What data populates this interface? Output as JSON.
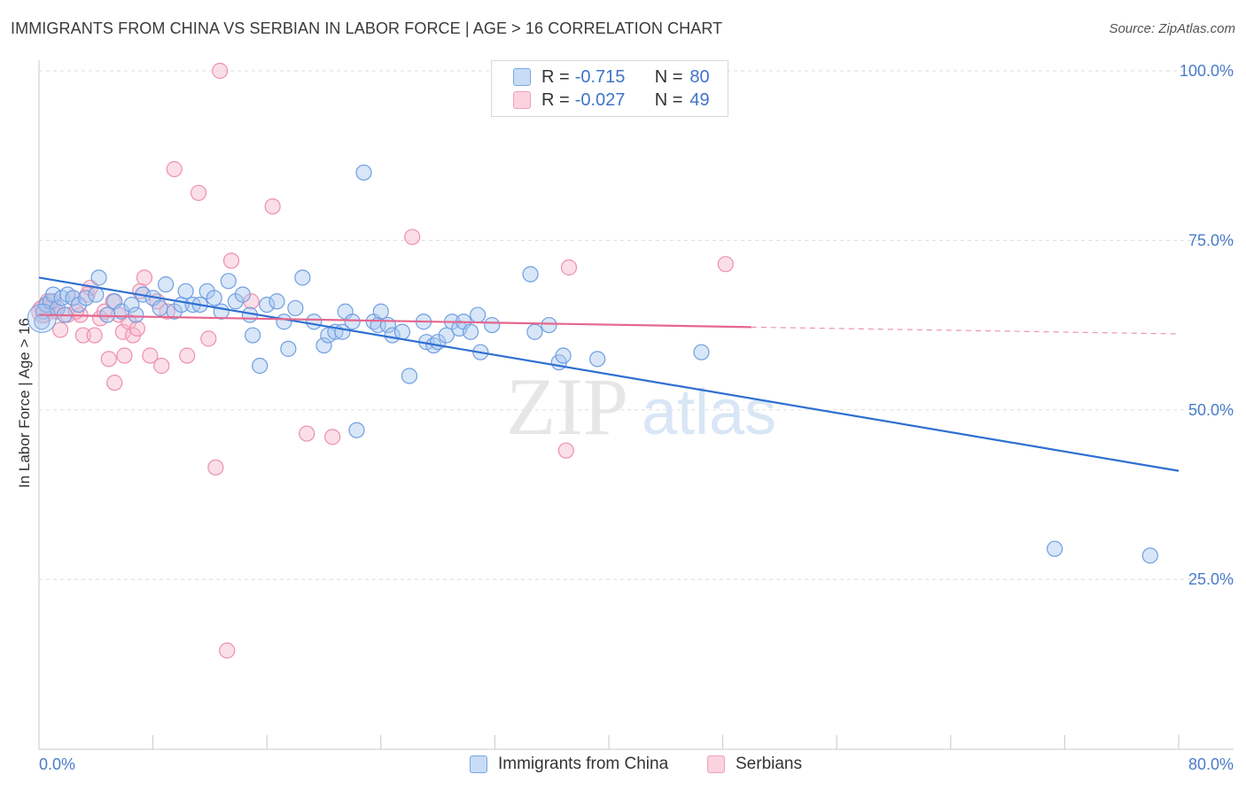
{
  "title": "IMMIGRANTS FROM CHINA VS SERBIAN IN LABOR FORCE | AGE > 16 CORRELATION CHART",
  "source": "Source: ZipAtlas.com",
  "watermark": {
    "zip": "ZIP",
    "atlas": "atlas"
  },
  "legend": {
    "china": {
      "r_label": "R =",
      "r_value": "-0.715",
      "n_label": "N =",
      "n_value": "80"
    },
    "serbian": {
      "r_label": "R =",
      "r_value": "-0.027",
      "n_label": "N =",
      "n_value": "49"
    }
  },
  "bottom_legend": {
    "china": "Immigrants from China",
    "serbian": "Serbians"
  },
  "colors": {
    "china_fill": "#a8c8f0",
    "china_stroke": "#6f9fe0",
    "china_line": "#2e6fd1",
    "serbian_fill": "#f7b8cc",
    "serbian_stroke": "#ee8fae",
    "serbian_line": "#e4678f",
    "tick": "#4a7cc9",
    "grid": "#dddddd"
  },
  "chart_data": {
    "type": "scatter",
    "title": "IMMIGRANTS FROM CHINA VS SERBIAN IN LABOR FORCE | AGE > 16 CORRELATION CHART",
    "xlabel": "",
    "ylabel": "In Labor Force | Age > 16",
    "xlim": [
      0,
      80
    ],
    "ylim": [
      0,
      103
    ],
    "x_tick_labels": [
      "0.0%",
      "80.0%"
    ],
    "y_ticks": [
      25,
      50,
      75,
      100
    ],
    "y_tick_labels": [
      "25.0%",
      "50.0%",
      "75.0%",
      "100.0%"
    ],
    "grid": true,
    "series": [
      {
        "name": "Immigrants from China",
        "trend": {
          "x0": 0,
          "y0": 69.5,
          "x1": 80,
          "y1": 41.0,
          "dashed_to": null
        },
        "points": [
          [
            0.3,
            64.5
          ],
          [
            0.5,
            65.5
          ],
          [
            0.8,
            66.0
          ],
          [
            1.0,
            67.0
          ],
          [
            1.3,
            65.0
          ],
          [
            1.6,
            66.5
          ],
          [
            2.0,
            67.0
          ],
          [
            2.4,
            66.5
          ],
          [
            2.8,
            65.5
          ],
          [
            3.3,
            66.5
          ],
          [
            4.0,
            67.0
          ],
          [
            4.2,
            69.5
          ],
          [
            4.8,
            64.0
          ],
          [
            5.3,
            66.0
          ],
          [
            5.8,
            64.5
          ],
          [
            6.5,
            65.5
          ],
          [
            6.8,
            64.0
          ],
          [
            7.3,
            67.0
          ],
          [
            8.0,
            66.5
          ],
          [
            8.5,
            65.0
          ],
          [
            8.9,
            68.5
          ],
          [
            9.5,
            64.5
          ],
          [
            10.0,
            65.5
          ],
          [
            10.3,
            67.5
          ],
          [
            10.8,
            65.5
          ],
          [
            11.3,
            65.5
          ],
          [
            11.8,
            67.5
          ],
          [
            12.3,
            66.5
          ],
          [
            12.8,
            64.5
          ],
          [
            13.3,
            69.0
          ],
          [
            13.8,
            66.0
          ],
          [
            14.3,
            67.0
          ],
          [
            14.8,
            64.0
          ],
          [
            15.0,
            61.0
          ],
          [
            15.5,
            56.5
          ],
          [
            16.0,
            65.5
          ],
          [
            16.7,
            66.0
          ],
          [
            17.2,
            63.0
          ],
          [
            17.5,
            59.0
          ],
          [
            18.0,
            65.0
          ],
          [
            18.5,
            69.5
          ],
          [
            19.3,
            63.0
          ],
          [
            20.0,
            59.5
          ],
          [
            20.3,
            61.0
          ],
          [
            20.8,
            61.5
          ],
          [
            21.3,
            61.5
          ],
          [
            21.5,
            64.5
          ],
          [
            22.0,
            63.0
          ],
          [
            22.3,
            47.0
          ],
          [
            22.8,
            85.0
          ],
          [
            23.5,
            63.0
          ],
          [
            23.8,
            62.5
          ],
          [
            24.0,
            64.5
          ],
          [
            24.5,
            62.5
          ],
          [
            24.8,
            61.0
          ],
          [
            25.5,
            61.5
          ],
          [
            26.0,
            55.0
          ],
          [
            27.0,
            63.0
          ],
          [
            27.2,
            60.0
          ],
          [
            27.7,
            59.5
          ],
          [
            28.0,
            60.0
          ],
          [
            28.6,
            61.0
          ],
          [
            29.0,
            63.0
          ],
          [
            29.5,
            62.0
          ],
          [
            29.8,
            63.0
          ],
          [
            30.3,
            61.5
          ],
          [
            30.8,
            64.0
          ],
          [
            31.0,
            58.5
          ],
          [
            31.8,
            62.5
          ],
          [
            34.5,
            70.0
          ],
          [
            34.8,
            61.5
          ],
          [
            35.8,
            62.5
          ],
          [
            36.5,
            57.0
          ],
          [
            36.8,
            58.0
          ],
          [
            39.2,
            57.5
          ],
          [
            46.5,
            58.5
          ],
          [
            71.3,
            29.5
          ],
          [
            78.0,
            28.5
          ],
          [
            0.2,
            63.0
          ],
          [
            1.8,
            64.0
          ]
        ]
      },
      {
        "name": "Serbians",
        "trend": {
          "x0": 0,
          "y0": 64.0,
          "x1": 50,
          "y1": 62.2,
          "dashed_to": [
            80,
            61.2
          ]
        },
        "points": [
          [
            0.2,
            65.0
          ],
          [
            0.4,
            64.5
          ],
          [
            0.6,
            66.0
          ],
          [
            0.9,
            65.0
          ],
          [
            1.2,
            64.5
          ],
          [
            1.5,
            61.8
          ],
          [
            2.0,
            64.0
          ],
          [
            2.4,
            66.5
          ],
          [
            2.9,
            64.0
          ],
          [
            3.1,
            61.0
          ],
          [
            3.4,
            67.0
          ],
          [
            3.6,
            68.0
          ],
          [
            3.9,
            61.0
          ],
          [
            4.3,
            63.5
          ],
          [
            4.6,
            64.5
          ],
          [
            4.9,
            57.5
          ],
          [
            5.2,
            66.0
          ],
          [
            5.3,
            54.0
          ],
          [
            5.6,
            64.0
          ],
          [
            5.9,
            61.5
          ],
          [
            6.0,
            58.0
          ],
          [
            6.3,
            63.0
          ],
          [
            6.6,
            61.0
          ],
          [
            6.9,
            62.0
          ],
          [
            7.1,
            67.5
          ],
          [
            7.4,
            69.5
          ],
          [
            7.8,
            58.0
          ],
          [
            8.3,
            66.0
          ],
          [
            8.6,
            56.5
          ],
          [
            9.0,
            64.5
          ],
          [
            9.5,
            85.5
          ],
          [
            10.4,
            58.0
          ],
          [
            11.2,
            82.0
          ],
          [
            11.9,
            60.5
          ],
          [
            12.4,
            41.5
          ],
          [
            12.7,
            100.0
          ],
          [
            13.2,
            14.5
          ],
          [
            13.5,
            72.0
          ],
          [
            14.9,
            66.0
          ],
          [
            16.4,
            80.0
          ],
          [
            18.8,
            46.5
          ],
          [
            20.6,
            46.0
          ],
          [
            26.2,
            75.5
          ],
          [
            37.0,
            44.0
          ],
          [
            37.2,
            71.0
          ],
          [
            48.2,
            71.5
          ],
          [
            2.6,
            64.5
          ],
          [
            1.0,
            66.0
          ],
          [
            0.3,
            64.0
          ]
        ]
      }
    ]
  }
}
